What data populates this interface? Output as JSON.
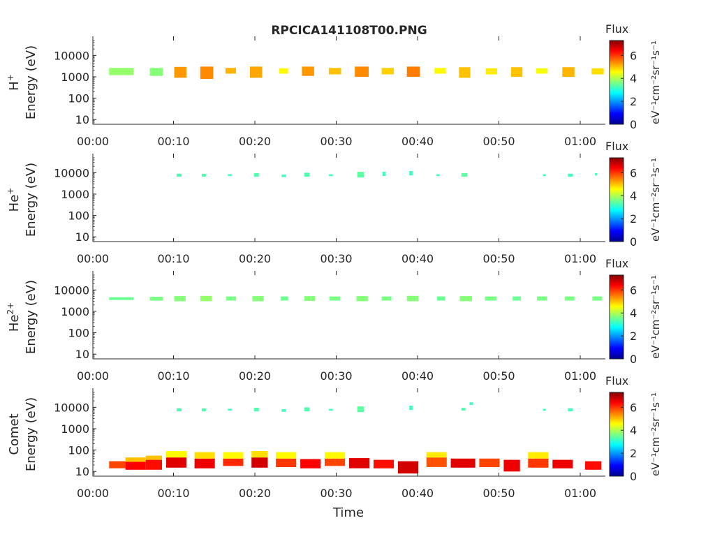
{
  "title": "RPCICA141108T00.PNG",
  "xlabel": "Time",
  "x_ticks": [
    "00:00",
    "00:10",
    "00:20",
    "00:30",
    "00:40",
    "00:50",
    "01:00"
  ],
  "colorbar": {
    "title": "Flux",
    "label": "eV⁻¹cm⁻²sr⁻¹s⁻¹",
    "ticks": [
      "0",
      "2",
      "4",
      "6"
    ],
    "range": [
      0,
      7.3
    ],
    "colormap": "jet"
  },
  "chart_data": [
    {
      "type": "heatmap",
      "species": "H+",
      "ylabel": "Energy (eV)",
      "yscale": "log",
      "ylim": [
        6,
        50000
      ],
      "xlim_minutes": [
        0,
        63
      ],
      "y_ticks": [
        "10",
        "100",
        "1000",
        "10000"
      ],
      "blocks": [
        {
          "t": [
            2,
            5
          ],
          "e": [
            1200,
            2600
          ],
          "v": 3.8
        },
        {
          "t": [
            7,
            8.6
          ],
          "e": [
            1100,
            2600
          ],
          "v": 3.7
        },
        {
          "t": [
            10,
            11.5
          ],
          "e": [
            900,
            2900
          ],
          "v": 5.3
        },
        {
          "t": [
            13.2,
            14.8
          ],
          "e": [
            800,
            3000
          ],
          "v": 5.4
        },
        {
          "t": [
            16.3,
            17.6
          ],
          "e": [
            1400,
            2600
          ],
          "v": 5.1
        },
        {
          "t": [
            19.3,
            20.8
          ],
          "e": [
            900,
            3000
          ],
          "v": 5.2
        },
        {
          "t": [
            22.9,
            24
          ],
          "e": [
            1400,
            2500
          ],
          "v": 4.6
        },
        {
          "t": [
            25.7,
            27.2
          ],
          "e": [
            1100,
            3000
          ],
          "v": 5.3
        },
        {
          "t": [
            29,
            30.5
          ],
          "e": [
            1300,
            2600
          ],
          "v": 5.0
        },
        {
          "t": [
            32.2,
            33.9
          ],
          "e": [
            1000,
            3000
          ],
          "v": 5.4
        },
        {
          "t": [
            35.5,
            37
          ],
          "e": [
            1300,
            2600
          ],
          "v": 4.9
        },
        {
          "t": [
            38.6,
            40.2
          ],
          "e": [
            1000,
            3000
          ],
          "v": 5.5
        },
        {
          "t": [
            42,
            43.4
          ],
          "e": [
            1400,
            2600
          ],
          "v": 4.6
        },
        {
          "t": [
            45,
            46.4
          ],
          "e": [
            900,
            2800
          ],
          "v": 5.0
        },
        {
          "t": [
            48.3,
            49.7
          ],
          "e": [
            1300,
            2500
          ],
          "v": 4.7
        },
        {
          "t": [
            51.4,
            52.8
          ],
          "e": [
            1000,
            2800
          ],
          "v": 5.0
        },
        {
          "t": [
            54.5,
            55.9
          ],
          "e": [
            1400,
            2500
          ],
          "v": 4.5
        },
        {
          "t": [
            57.7,
            59.2
          ],
          "e": [
            1000,
            2800
          ],
          "v": 5.1
        },
        {
          "t": [
            61.3,
            62.8
          ],
          "e": [
            1300,
            2500
          ],
          "v": 4.8
        }
      ]
    },
    {
      "type": "heatmap",
      "species": "He+",
      "ylabel": "Energy (eV)",
      "yscale": "log",
      "ylim": [
        6,
        50000
      ],
      "xlim_minutes": [
        0,
        63
      ],
      "y_ticks": [
        "10",
        "100",
        "1000",
        "10000"
      ],
      "blocks": [
        {
          "t": [
            10.3,
            10.9
          ],
          "e": [
            6500,
            9000
          ],
          "v": 3.3
        },
        {
          "t": [
            13.4,
            13.9
          ],
          "e": [
            6500,
            9000
          ],
          "v": 3.3
        },
        {
          "t": [
            16.6,
            17.1
          ],
          "e": [
            7000,
            8600
          ],
          "v": 3.2
        },
        {
          "t": [
            19.8,
            20.4
          ],
          "e": [
            6500,
            9500
          ],
          "v": 3.3
        },
        {
          "t": [
            23.2,
            23.7
          ],
          "e": [
            6200,
            8200
          ],
          "v": 3.2
        },
        {
          "t": [
            26,
            26.6
          ],
          "e": [
            6500,
            10000
          ],
          "v": 3.3
        },
        {
          "t": [
            29,
            29.5
          ],
          "e": [
            7000,
            8500
          ],
          "v": 3.2
        },
        {
          "t": [
            32.5,
            33.3
          ],
          "e": [
            6000,
            11000
          ],
          "v": 3.4
        },
        {
          "t": [
            35.6,
            36
          ],
          "e": [
            7000,
            11000
          ],
          "v": 3.2
        },
        {
          "t": [
            38.9,
            39.3
          ],
          "e": [
            7500,
            12000
          ],
          "v": 3.2
        },
        {
          "t": [
            42.2,
            42.6
          ],
          "e": [
            7000,
            8500
          ],
          "v": 3.2
        },
        {
          "t": [
            45.3,
            46
          ],
          "e": [
            6500,
            9500
          ],
          "v": 3.4
        },
        {
          "t": [
            55.3,
            55.7
          ],
          "e": [
            7000,
            8500
          ],
          "v": 3.2
        },
        {
          "t": [
            58.4,
            59
          ],
          "e": [
            6500,
            9000
          ],
          "v": 3.2
        },
        {
          "t": [
            61.7,
            62
          ],
          "e": [
            7500,
            9500
          ],
          "v": 3.2
        }
      ]
    },
    {
      "type": "heatmap",
      "species": "He2+",
      "ylabel": "Energy (eV)",
      "yscale": "log",
      "ylim": [
        6,
        50000
      ],
      "xlim_minutes": [
        0,
        63
      ],
      "y_ticks": [
        "10",
        "100",
        "1000",
        "10000"
      ],
      "blocks": [
        {
          "t": [
            2,
            5
          ],
          "e": [
            3400,
            4600
          ],
          "v": 3.5
        },
        {
          "t": [
            7,
            8.6
          ],
          "e": [
            3200,
            4800
          ],
          "v": 3.6
        },
        {
          "t": [
            10,
            11.4
          ],
          "e": [
            3000,
            5200
          ],
          "v": 3.7
        },
        {
          "t": [
            13.2,
            14.6
          ],
          "e": [
            3000,
            5300
          ],
          "v": 3.8
        },
        {
          "t": [
            16.4,
            17.6
          ],
          "e": [
            3200,
            5000
          ],
          "v": 3.6
        },
        {
          "t": [
            19.6,
            21
          ],
          "e": [
            3000,
            5200
          ],
          "v": 3.7
        },
        {
          "t": [
            23.1,
            24
          ],
          "e": [
            3200,
            5000
          ],
          "v": 3.5
        },
        {
          "t": [
            26,
            27.3
          ],
          "e": [
            3100,
            5200
          ],
          "v": 3.7
        },
        {
          "t": [
            29.1,
            30.4
          ],
          "e": [
            3200,
            5000
          ],
          "v": 3.6
        },
        {
          "t": [
            32.4,
            33.8
          ],
          "e": [
            3000,
            5200
          ],
          "v": 3.7
        },
        {
          "t": [
            35.5,
            36.7
          ],
          "e": [
            3200,
            5000
          ],
          "v": 3.6
        },
        {
          "t": [
            38.6,
            40
          ],
          "e": [
            3000,
            5300
          ],
          "v": 3.7
        },
        {
          "t": [
            42.3,
            43.3
          ],
          "e": [
            3200,
            5000
          ],
          "v": 3.5
        },
        {
          "t": [
            45.1,
            46.6
          ],
          "e": [
            3000,
            5200
          ],
          "v": 3.7
        },
        {
          "t": [
            48.2,
            49.6
          ],
          "e": [
            3200,
            5000
          ],
          "v": 3.6
        },
        {
          "t": [
            51.6,
            52.6
          ],
          "e": [
            3200,
            5000
          ],
          "v": 3.5
        },
        {
          "t": [
            54.6,
            55.8
          ],
          "e": [
            3200,
            5000
          ],
          "v": 3.6
        },
        {
          "t": [
            58,
            59.2
          ],
          "e": [
            3200,
            5000
          ],
          "v": 3.6
        },
        {
          "t": [
            61.4,
            62.6
          ],
          "e": [
            3200,
            5000
          ],
          "v": 3.6
        }
      ]
    },
    {
      "type": "heatmap",
      "species": "Comet",
      "ylabel": "Energy (eV)",
      "yscale": "log",
      "ylim": [
        6,
        50000
      ],
      "xlim_minutes": [
        0,
        63
      ],
      "y_ticks": [
        "10",
        "100",
        "1000",
        "10000"
      ],
      "blocks": [
        {
          "t": [
            2,
            4
          ],
          "e": [
            14,
            30
          ],
          "v": 5.9
        },
        {
          "t": [
            4,
            6.5
          ],
          "e": [
            12,
            28
          ],
          "v": 6.4
        },
        {
          "t": [
            4,
            6.5
          ],
          "e": [
            28,
            45
          ],
          "v": 5.0
        },
        {
          "t": [
            6.5,
            8.5
          ],
          "e": [
            12,
            35
          ],
          "v": 6.3
        },
        {
          "t": [
            6.5,
            8.5
          ],
          "e": [
            35,
            55
          ],
          "v": 5.0
        },
        {
          "t": [
            9,
            11.5
          ],
          "e": [
            15,
            45
          ],
          "v": 6.6
        },
        {
          "t": [
            9,
            11.5
          ],
          "e": [
            45,
            90
          ],
          "v": 4.6
        },
        {
          "t": [
            12.5,
            15
          ],
          "e": [
            14,
            40
          ],
          "v": 6.5
        },
        {
          "t": [
            12.5,
            15
          ],
          "e": [
            40,
            80
          ],
          "v": 4.8
        },
        {
          "t": [
            16,
            18.5
          ],
          "e": [
            18,
            40
          ],
          "v": 6.1
        },
        {
          "t": [
            16,
            18.5
          ],
          "e": [
            40,
            80
          ],
          "v": 4.6
        },
        {
          "t": [
            19.5,
            21.5
          ],
          "e": [
            15,
            45
          ],
          "v": 6.7
        },
        {
          "t": [
            19.5,
            21.5
          ],
          "e": [
            45,
            90
          ],
          "v": 4.8
        },
        {
          "t": [
            22.5,
            25
          ],
          "e": [
            16,
            40
          ],
          "v": 6.0
        },
        {
          "t": [
            22.5,
            25
          ],
          "e": [
            40,
            80
          ],
          "v": 4.6
        },
        {
          "t": [
            25.5,
            28
          ],
          "e": [
            14,
            38
          ],
          "v": 6.4
        },
        {
          "t": [
            28.5,
            31
          ],
          "e": [
            18,
            40
          ],
          "v": 5.9
        },
        {
          "t": [
            28.5,
            31
          ],
          "e": [
            40,
            80
          ],
          "v": 4.6
        },
        {
          "t": [
            31.5,
            34
          ],
          "e": [
            14,
            42
          ],
          "v": 6.6
        },
        {
          "t": [
            34.5,
            37
          ],
          "e": [
            14,
            35
          ],
          "v": 6.3
        },
        {
          "t": [
            37.5,
            40
          ],
          "e": [
            8,
            30
          ],
          "v": 6.7
        },
        {
          "t": [
            41,
            43.5
          ],
          "e": [
            16,
            45
          ],
          "v": 5.8
        },
        {
          "t": [
            41,
            43.5
          ],
          "e": [
            45,
            80
          ],
          "v": 4.7
        },
        {
          "t": [
            44,
            47
          ],
          "e": [
            15,
            40
          ],
          "v": 6.6
        },
        {
          "t": [
            47.5,
            50
          ],
          "e": [
            16,
            40
          ],
          "v": 5.9
        },
        {
          "t": [
            50.5,
            52.5
          ],
          "e": [
            10,
            35
          ],
          "v": 6.5
        },
        {
          "t": [
            53.5,
            56
          ],
          "e": [
            15,
            40
          ],
          "v": 6.0
        },
        {
          "t": [
            53.5,
            56
          ],
          "e": [
            40,
            80
          ],
          "v": 4.7
        },
        {
          "t": [
            56.5,
            59
          ],
          "e": [
            14,
            35
          ],
          "v": 6.5
        },
        {
          "t": [
            60.5,
            62.5
          ],
          "e": [
            12,
            30
          ],
          "v": 6.3
        },
        {
          "t": [
            10.3,
            10.9
          ],
          "e": [
            6500,
            9000
          ],
          "v": 3.3
        },
        {
          "t": [
            13.4,
            13.9
          ],
          "e": [
            6500,
            9000
          ],
          "v": 3.3
        },
        {
          "t": [
            16.6,
            17.1
          ],
          "e": [
            7000,
            8600
          ],
          "v": 3.2
        },
        {
          "t": [
            19.8,
            20.4
          ],
          "e": [
            6500,
            9500
          ],
          "v": 3.3
        },
        {
          "t": [
            23.2,
            23.7
          ],
          "e": [
            6200,
            8200
          ],
          "v": 3.2
        },
        {
          "t": [
            26,
            26.6
          ],
          "e": [
            6500,
            10000
          ],
          "v": 3.3
        },
        {
          "t": [
            29,
            29.5
          ],
          "e": [
            7000,
            8500
          ],
          "v": 3.2
        },
        {
          "t": [
            32.5,
            33.3
          ],
          "e": [
            6000,
            11000
          ],
          "v": 3.4
        },
        {
          "t": [
            38.9,
            39.3
          ],
          "e": [
            7500,
            12000
          ],
          "v": 3.2
        },
        {
          "t": [
            45.3,
            45.8
          ],
          "e": [
            7000,
            9500
          ],
          "v": 3.3
        },
        {
          "t": [
            46.3,
            46.7
          ],
          "e": [
            13000,
            17000
          ],
          "v": 3.2
        },
        {
          "t": [
            55.3,
            55.7
          ],
          "e": [
            7000,
            8500
          ],
          "v": 3.2
        },
        {
          "t": [
            58.4,
            59
          ],
          "e": [
            6500,
            9000
          ],
          "v": 3.2
        }
      ]
    }
  ]
}
